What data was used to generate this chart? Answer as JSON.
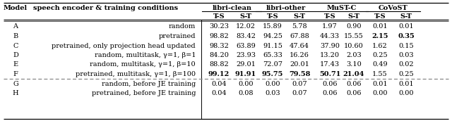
{
  "rows": [
    [
      "A",
      "random",
      "30.23",
      "12.02",
      "15.89",
      "5.78",
      "1.97",
      "0.90",
      "0.01",
      "0.01"
    ],
    [
      "B",
      "pretrained",
      "98.82",
      "83.42",
      "94.25",
      "67.88",
      "44.33",
      "15.55",
      "2.15",
      "0.35"
    ],
    [
      "C",
      "pretrained, only projection head updated",
      "98.32",
      "63.89",
      "91.15",
      "47.64",
      "37.90",
      "10.60",
      "1.62",
      "0.15"
    ],
    [
      "D",
      "random, multitask, γ=1, β=1",
      "84.20",
      "23.93",
      "65.33",
      "16.26",
      "13.20",
      "2.03",
      "0.25",
      "0.03"
    ],
    [
      "E",
      "random, multitask, γ=1, β=10",
      "88.82",
      "29.01",
      "72.07",
      "20.01",
      "17.43",
      "3.10",
      "0.49",
      "0.02"
    ],
    [
      "F",
      "pretrained, multitask, γ=1, β=100",
      "99.12",
      "91.91",
      "95.75",
      "79.58",
      "50.71",
      "21.04",
      "1.55",
      "0.25"
    ],
    [
      "G",
      "random, before JE training",
      "0.04",
      "0.00",
      "0.00",
      "0.07",
      "0.06",
      "0.06",
      "0.01",
      "0.01"
    ],
    [
      "H",
      "pretrained, before JE training",
      "0.04",
      "0.08",
      "0.03",
      "0.07",
      "0.06",
      "0.06",
      "0.00",
      "0.00"
    ]
  ],
  "bold_cells": {
    "B": [
      8,
      9
    ],
    "F": [
      2,
      3,
      4,
      5,
      6,
      7
    ]
  },
  "group_headers": [
    "libri-clean",
    "libri-other",
    "MuST-C",
    "CoVoST"
  ],
  "background_color": "#ffffff",
  "font_family": "DejaVu Serif"
}
